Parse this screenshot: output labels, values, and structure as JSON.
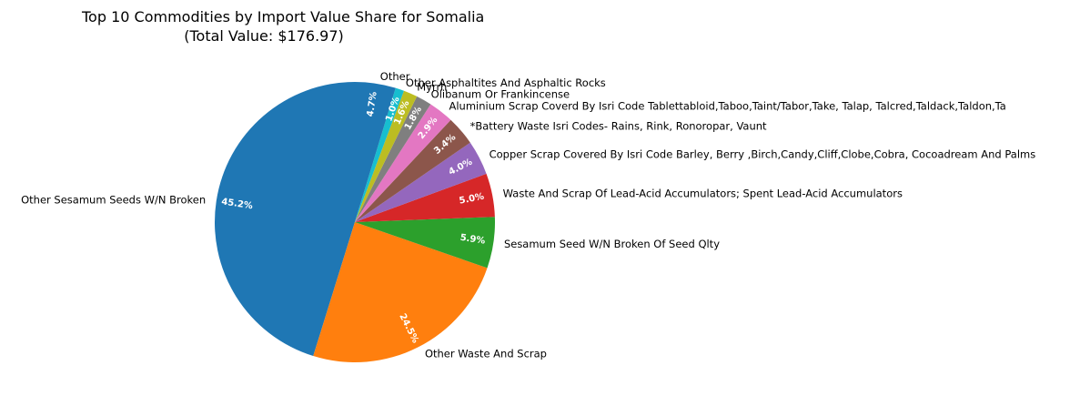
{
  "chart_data": {
    "type": "pie",
    "title": "Top 10 Commodities by Import Value Share for Somalia",
    "subtitle": "(Total Value: $176.97)",
    "slices": [
      {
        "label": "Other Sesamum Seeds W/N Broken",
        "value": 45.2,
        "pct_label": "45.2%",
        "color": "#1f77b4"
      },
      {
        "label": "Other Waste And Scrap",
        "value": 24.5,
        "pct_label": "24.5%",
        "color": "#ff7f0e"
      },
      {
        "label": "Sesamum Seed W/N Broken Of Seed Qlty",
        "value": 5.9,
        "pct_label": "5.9%",
        "color": "#2ca02c"
      },
      {
        "label": "Waste And Scrap Of Lead-Acid Accumulators; Spent Lead-Acid Accumulators",
        "value": 5.0,
        "pct_label": "5.0%",
        "color": "#d62728"
      },
      {
        "label": "Copper Scrap Covered By Isri Code Barley, Berry ,Birch,Candy,Cliff,Clobe,Cobra, Cocoadream And Palms",
        "value": 4.0,
        "pct_label": "4.0%",
        "color": "#9467bd"
      },
      {
        "label": "*Battery Waste Isri Codes- Rains, Rink, Ronoropar, Vaunt",
        "value": 3.4,
        "pct_label": "3.4%",
        "color": "#8c564b"
      },
      {
        "label": "Aluminium Scrap Coverd By Isri Code Tablettabloid,Taboo,Taint/Tabor,Take, Talap, Talcred,Taldack,Taldon,Ta",
        "value": 2.9,
        "pct_label": "2.9%",
        "color": "#e377c2"
      },
      {
        "label": "Olibanum Or Frankincense",
        "value": 1.8,
        "pct_label": "1.8%",
        "color": "#7f7f7f"
      },
      {
        "label": "Myrrh",
        "value": 1.6,
        "pct_label": "1.6%",
        "color": "#bcbd22"
      },
      {
        "label": "Other Asphaltites And Asphaltic Rocks",
        "value": 1.0,
        "pct_label": "1.0%",
        "color": "#17becf"
      },
      {
        "label": "Other",
        "value": 4.7,
        "pct_label": "4.7%",
        "color": "#1f77b4"
      }
    ]
  }
}
